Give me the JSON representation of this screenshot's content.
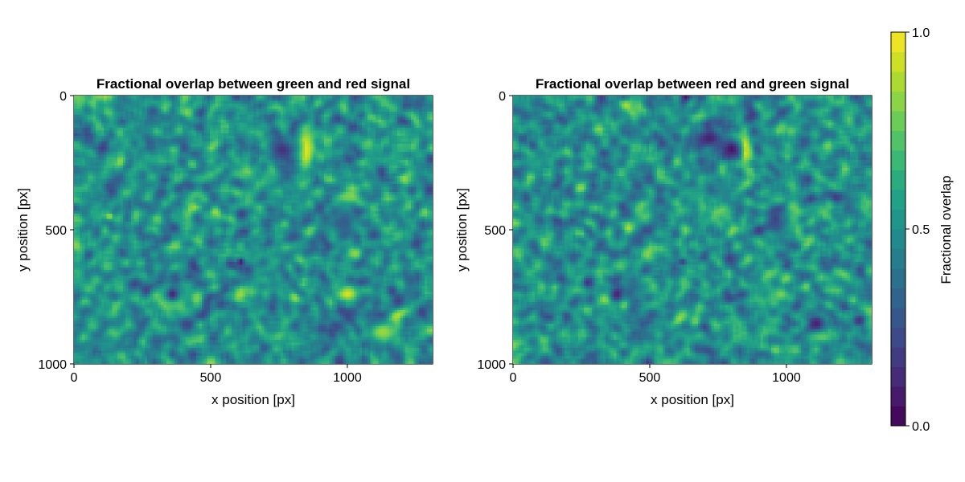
{
  "chart_data": [
    {
      "type": "heatmap",
      "title": "Fractional overlap between green and red signal",
      "xlabel": "x position [px]",
      "ylabel": "y position [px]",
      "xlim": [
        0,
        1312
      ],
      "ylim": [
        1000,
        0
      ],
      "x_ticks": [
        "0",
        "500",
        "1000"
      ],
      "y_ticks": [
        "0",
        "500",
        "1000"
      ],
      "colormap": "viridis",
      "features": [
        {
          "kind": "bright",
          "x": 850,
          "y": 200,
          "rx": 40,
          "ry": 120,
          "value": 0.95
        },
        {
          "kind": "dark",
          "x": 760,
          "y": 200,
          "rx": 70,
          "ry": 60,
          "value": 0.15
        },
        {
          "kind": "bright",
          "x": 1000,
          "y": 380,
          "rx": 70,
          "ry": 30,
          "value": 0.85
        },
        {
          "kind": "dark",
          "x": 990,
          "y": 470,
          "rx": 50,
          "ry": 80,
          "value": 0.3
        },
        {
          "kind": "bright",
          "x": 360,
          "y": 760,
          "rx": 70,
          "ry": 60,
          "value": 0.9
        },
        {
          "kind": "dark",
          "x": 360,
          "y": 740,
          "rx": 40,
          "ry": 40,
          "value": 0.1
        },
        {
          "kind": "bright",
          "x": 1000,
          "y": 740,
          "rx": 60,
          "ry": 40,
          "value": 0.95
        },
        {
          "kind": "dark",
          "x": 1110,
          "y": 850,
          "rx": 50,
          "ry": 40,
          "value": 0.2
        },
        {
          "kind": "bright",
          "x": 1130,
          "y": 880,
          "rx": 70,
          "ry": 50,
          "value": 0.85
        },
        {
          "kind": "dark",
          "x": 610,
          "y": 620,
          "rx": 20,
          "ry": 20,
          "value": 0.05
        },
        {
          "kind": "bright",
          "x": 130,
          "y": 450,
          "rx": 15,
          "ry": 15,
          "value": 0.9
        }
      ]
    },
    {
      "type": "heatmap",
      "title": "Fractional overlap between red and green signal",
      "xlabel": "x position [px]",
      "ylabel": "y position [px]",
      "xlim": [
        0,
        1312
      ],
      "ylim": [
        1000,
        0
      ],
      "x_ticks": [
        "0",
        "500",
        "1000"
      ],
      "y_ticks": [
        "0",
        "500",
        "1000"
      ],
      "colormap": "viridis",
      "features": [
        {
          "kind": "bright",
          "x": 850,
          "y": 200,
          "rx": 25,
          "ry": 90,
          "value": 0.95
        },
        {
          "kind": "dark",
          "x": 720,
          "y": 160,
          "rx": 70,
          "ry": 50,
          "value": 0.1
        },
        {
          "kind": "dark",
          "x": 800,
          "y": 200,
          "rx": 40,
          "ry": 40,
          "value": 0.05
        },
        {
          "kind": "bright",
          "x": 970,
          "y": 390,
          "rx": 40,
          "ry": 25,
          "value": 0.75
        },
        {
          "kind": "dark",
          "x": 960,
          "y": 460,
          "rx": 40,
          "ry": 70,
          "value": 0.2
        },
        {
          "kind": "bright",
          "x": 340,
          "y": 760,
          "rx": 45,
          "ry": 35,
          "value": 0.85
        },
        {
          "kind": "dark",
          "x": 380,
          "y": 740,
          "rx": 35,
          "ry": 40,
          "value": 0.1
        },
        {
          "kind": "bright",
          "x": 980,
          "y": 740,
          "rx": 40,
          "ry": 35,
          "value": 0.8
        },
        {
          "kind": "dark",
          "x": 1110,
          "y": 850,
          "rx": 40,
          "ry": 45,
          "value": 0.1
        },
        {
          "kind": "bright",
          "x": 1130,
          "y": 900,
          "rx": 60,
          "ry": 25,
          "value": 0.75
        },
        {
          "kind": "dark",
          "x": 620,
          "y": 620,
          "rx": 20,
          "ry": 15,
          "value": 0.15
        }
      ]
    }
  ],
  "colorbar": {
    "label": "Fractional overlap",
    "range": [
      0.0,
      1.0
    ],
    "levels": 20,
    "tick_labels": [
      "0.0",
      "0.5",
      "1.0"
    ],
    "tick_values": [
      0.0,
      0.5,
      1.0
    ]
  }
}
